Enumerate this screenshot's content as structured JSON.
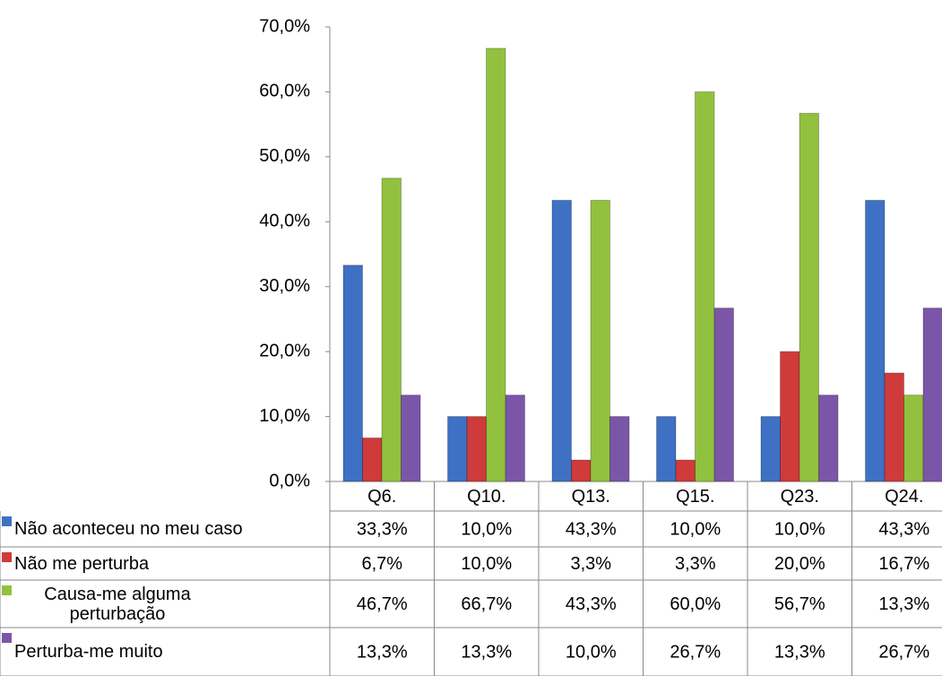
{
  "chart_data": {
    "type": "bar",
    "categories": [
      "Q6.",
      "Q10.",
      "Q13.",
      "Q15.",
      "Q23.",
      "Q24."
    ],
    "series": [
      {
        "name": "Não aconteceu no meu caso",
        "color": "#3e71c4",
        "values": [
          33.3,
          10.0,
          43.3,
          10.0,
          10.0,
          43.3
        ],
        "value_labels": [
          "33,3%",
          "10,0%",
          "43,3%",
          "10,0%",
          "10,0%",
          "43,3%"
        ]
      },
      {
        "name": "Não me perturba",
        "color": "#cf3a3a",
        "values": [
          6.7,
          10.0,
          3.3,
          3.3,
          20.0,
          16.7
        ],
        "value_labels": [
          "6,7%",
          "10,0%",
          "3,3%",
          "3,3%",
          "20,0%",
          "16,7%"
        ]
      },
      {
        "name": "Causa-me alguma perturbação",
        "color": "#92c13f",
        "values": [
          46.7,
          66.7,
          43.3,
          60.0,
          56.7,
          13.3
        ],
        "value_labels": [
          "46,7%",
          "66,7%",
          "43,3%",
          "60,0%",
          "56,7%",
          "13,3%"
        ]
      },
      {
        "name": "Perturba-me muito",
        "color": "#7b56a8",
        "values": [
          13.3,
          13.3,
          10.0,
          26.7,
          13.3,
          26.7
        ],
        "value_labels": [
          "13,3%",
          "13,3%",
          "10,0%",
          "26,7%",
          "13,3%",
          "26,7%"
        ]
      }
    ],
    "ylim": [
      0,
      70
    ],
    "yticks": [
      {
        "value": 0,
        "label": "0,0%"
      },
      {
        "value": 10,
        "label": "10,0%"
      },
      {
        "value": 20,
        "label": "20,0%"
      },
      {
        "value": 30,
        "label": "30,0%"
      },
      {
        "value": 40,
        "label": "40,0%"
      },
      {
        "value": 50,
        "label": "50,0%"
      },
      {
        "value": 60,
        "label": "60,0%"
      },
      {
        "value": 70,
        "label": "70,0%"
      }
    ],
    "grid": false
  }
}
